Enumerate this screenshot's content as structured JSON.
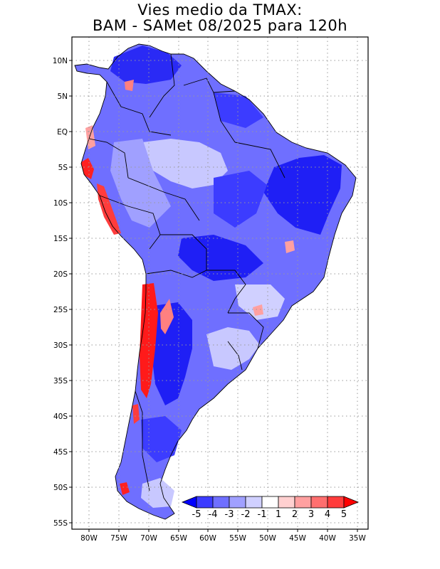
{
  "title": {
    "line1": "Vies medio da TMAX:",
    "line2": "BAM - SAMet 08/2025  para 120h"
  },
  "axes": {
    "lat_ticks": [
      "10N",
      "5N",
      "EQ",
      "5S",
      "10S",
      "15S",
      "20S",
      "25S",
      "30S",
      "35S",
      "40S",
      "45S",
      "50S",
      "55S"
    ],
    "lon_ticks": [
      "80W",
      "75W",
      "70W",
      "65W",
      "60W",
      "55W",
      "50W",
      "45W",
      "40W",
      "35W"
    ]
  },
  "colorbar": {
    "labels": [
      "-5",
      "-4",
      "-3",
      "-2",
      "-1",
      "1",
      "2",
      "3",
      "4",
      "5"
    ],
    "colors": [
      "#0000ff",
      "#3c3cff",
      "#6f6fff",
      "#a0a0ff",
      "#d0d0ff",
      "#ffffff",
      "#ffd0d0",
      "#ffa0a0",
      "#ff6f6f",
      "#ff3c3c",
      "#ff0000"
    ]
  },
  "colors": {
    "deep_blue": "#1f1ff5",
    "mid_blue": "#6f6fff",
    "light_blue": "#c8c8ff",
    "red": "#ff1a1a",
    "border": "#000000",
    "grid": "#9a9a9a"
  }
}
